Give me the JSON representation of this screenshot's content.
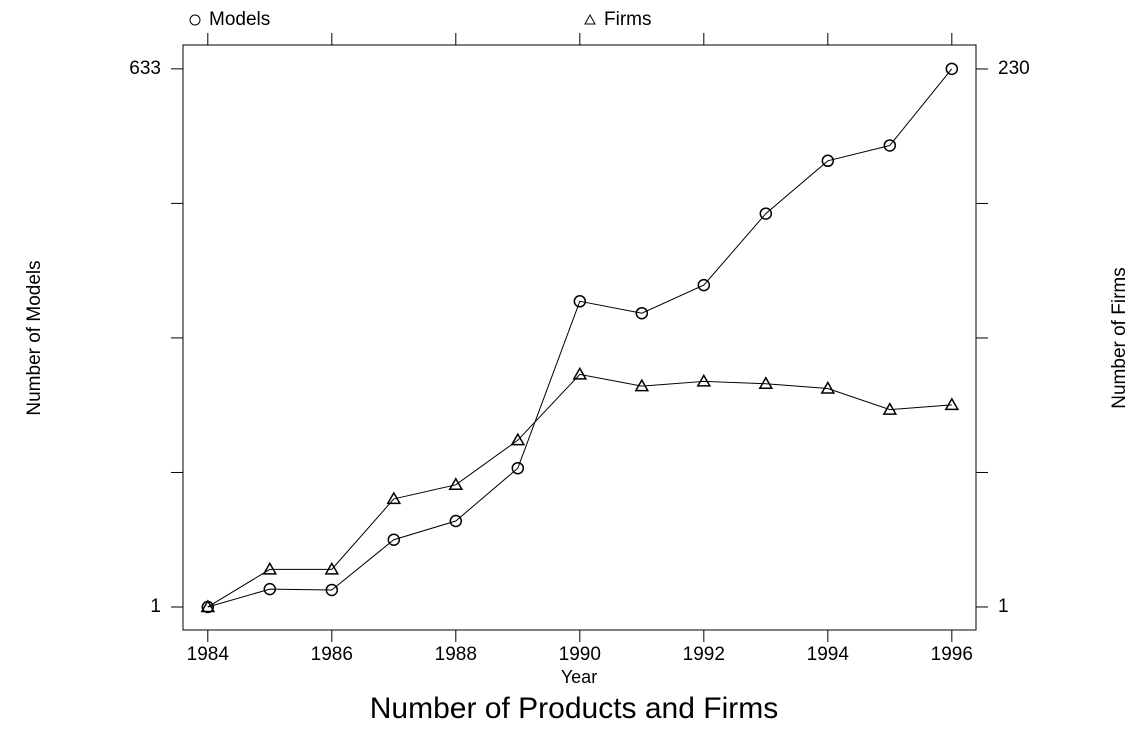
{
  "chart_data": {
    "type": "line",
    "title": "Number of Products and Firms",
    "xlabel": "Year",
    "ylabel": "Number of Models",
    "y2label": "Number of Firms",
    "x": [
      1984,
      1985,
      1986,
      1987,
      1988,
      1989,
      1990,
      1991,
      1992,
      1993,
      1994,
      1995,
      1996
    ],
    "series": [
      {
        "name": "Models",
        "color": "#000000",
        "marker": "circle",
        "values": [
          1,
          22,
          21,
          80,
          102,
          164,
          360,
          346,
          379,
          463,
          525,
          543,
          633
        ]
      },
      {
        "name": "Firms",
        "color": "#000000",
        "marker": "triangle",
        "axis": "y2",
        "values": [
          1,
          17,
          17,
          47,
          53,
          72,
          100,
          95,
          97,
          96,
          94,
          85,
          87
        ]
      }
    ],
    "xlim": [
      1983.6,
      1996.39
    ],
    "xticks": [
      1984,
      1986,
      1988,
      1990,
      1992,
      1994,
      1996
    ],
    "ylim": [
      -26,
      661
    ],
    "yticks": [
      1,
      633
    ],
    "yminor_ticks": [
      159,
      317,
      475
    ],
    "y2lim": [
      -8.8,
      240.2
    ],
    "y2ticks": [
      1,
      230
    ],
    "y2minor_ticks": [
      58.25,
      115.5,
      172.75
    ],
    "legend": "top",
    "grid": false
  }
}
